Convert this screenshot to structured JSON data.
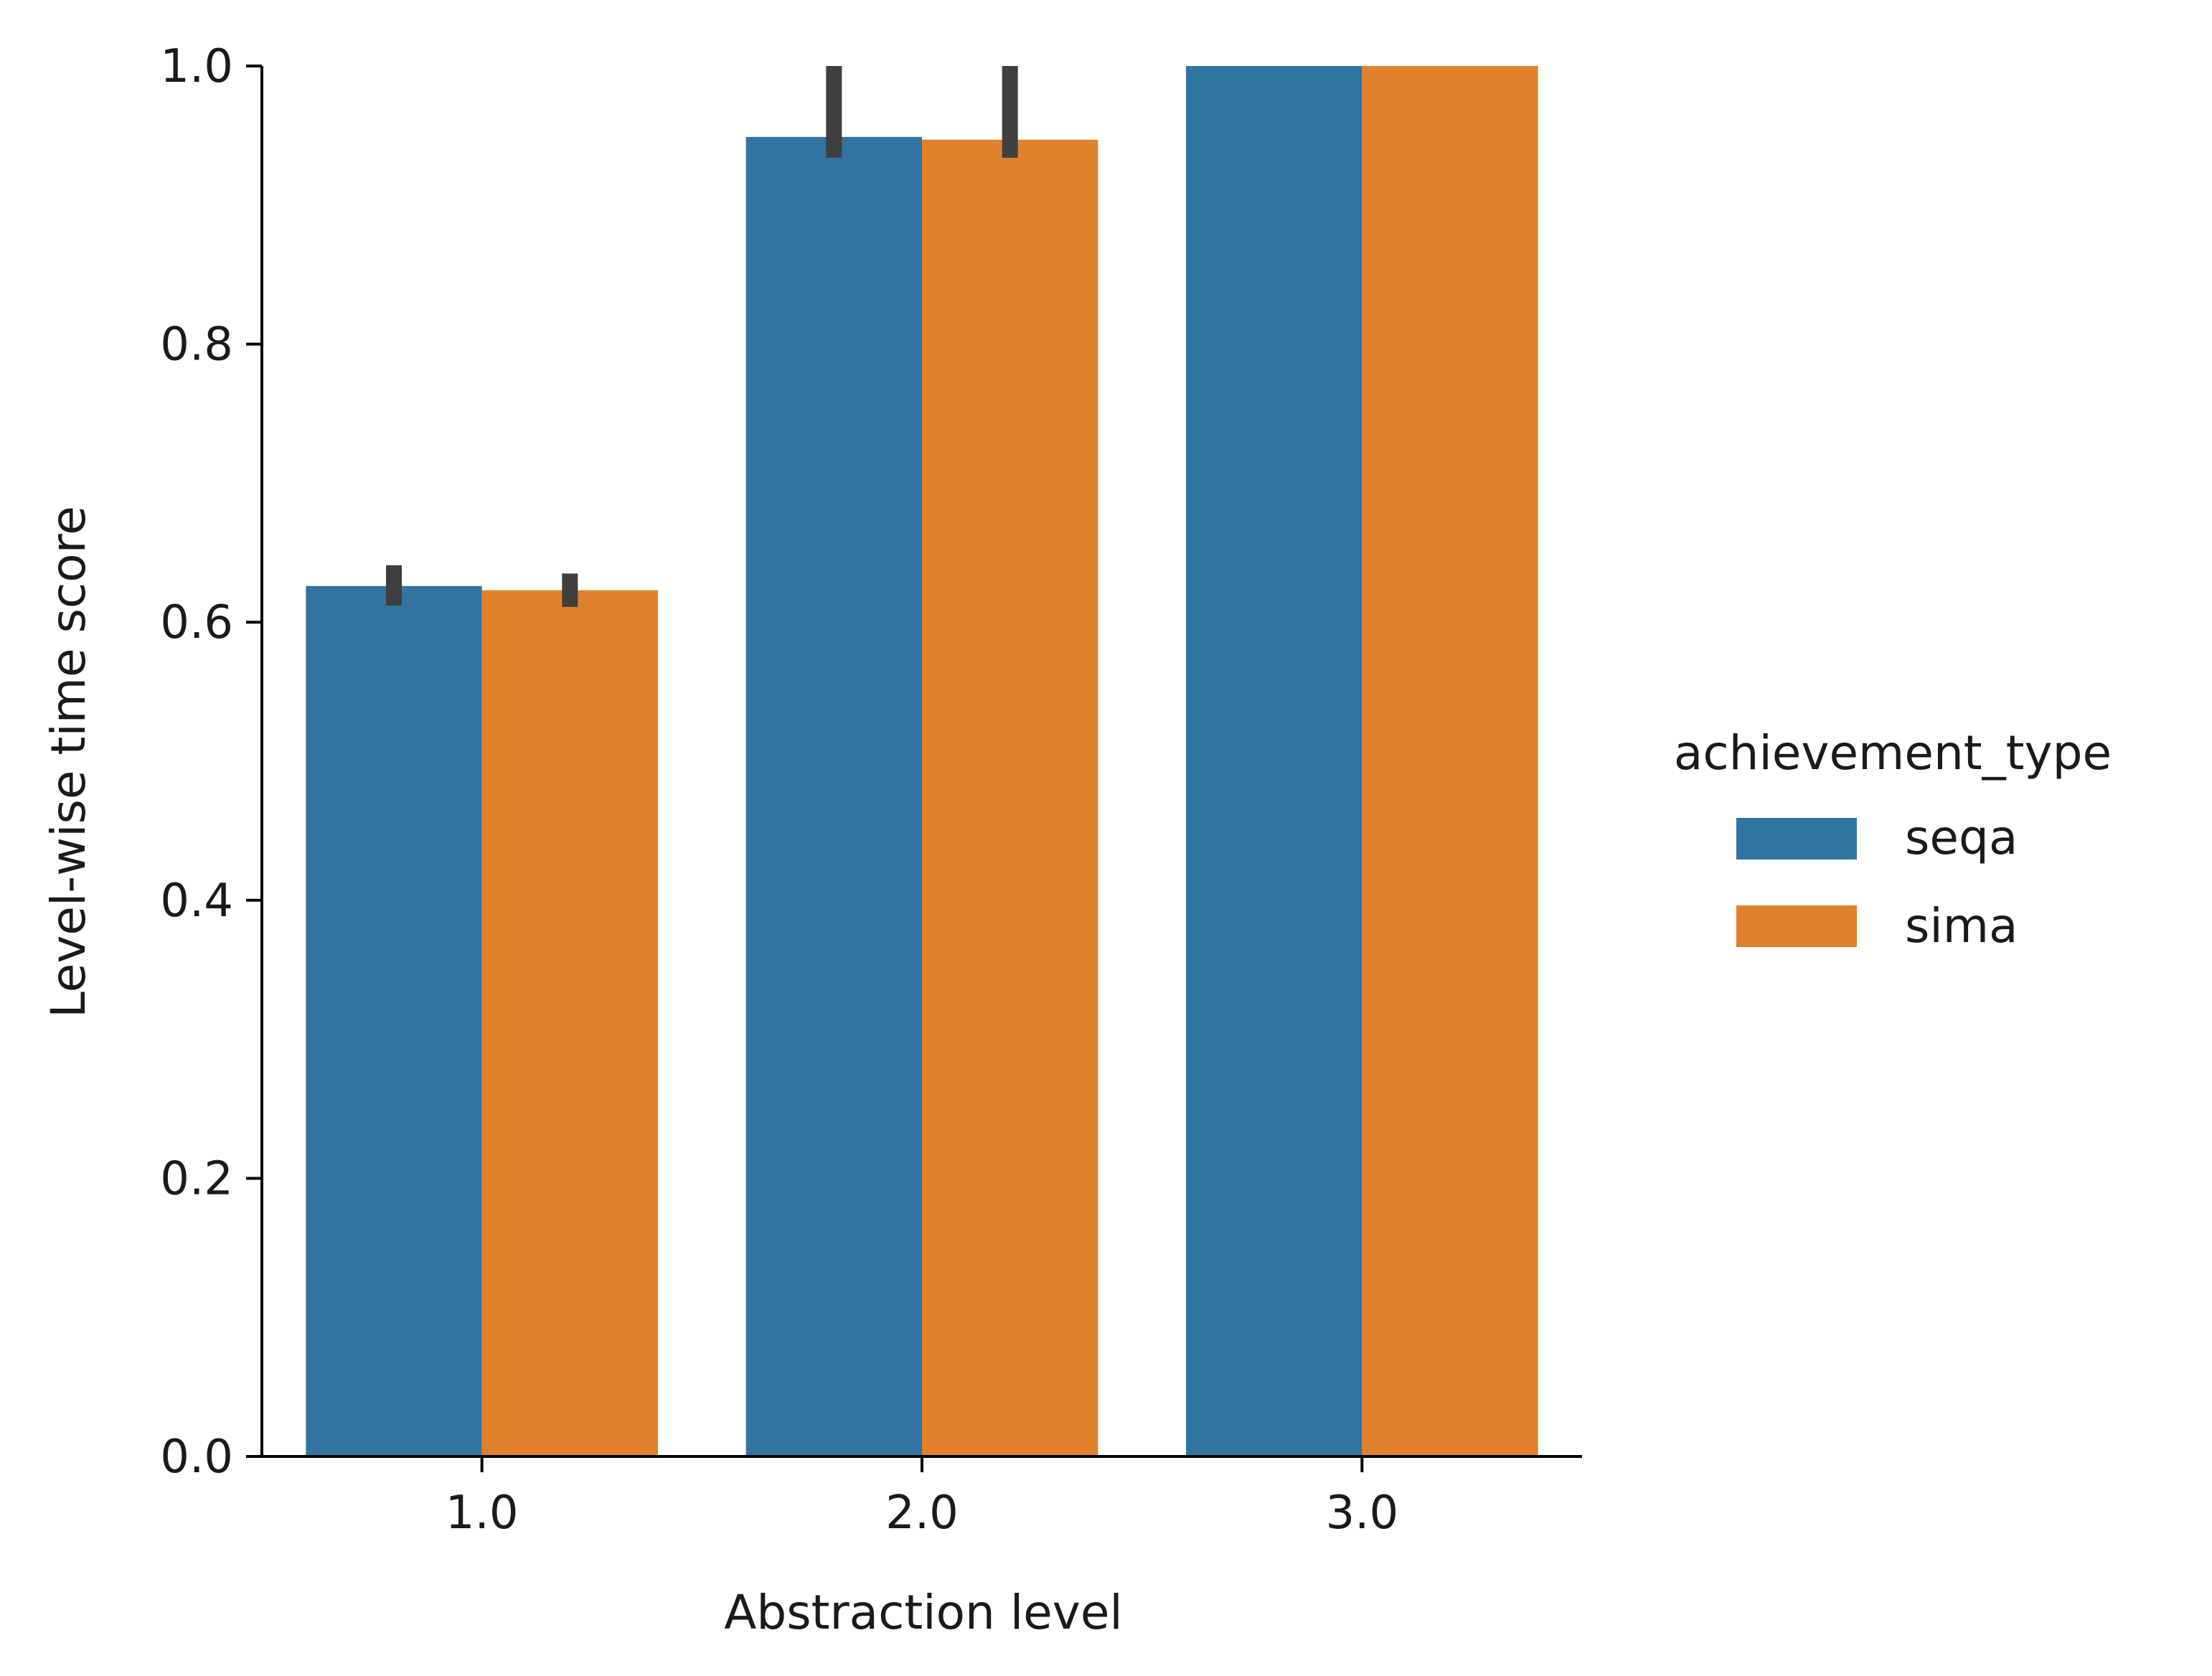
{
  "chart_data": {
    "type": "bar",
    "xlabel": "Abstraction level",
    "ylabel": "Level-wise time score",
    "categories": [
      "1.0",
      "2.0",
      "3.0"
    ],
    "ylim": [
      0.0,
      1.0
    ],
    "yticks": [
      "0.0",
      "0.2",
      "0.4",
      "0.6",
      "0.8",
      "1.0"
    ],
    "grid": false,
    "legend": {
      "title": "achievement_type",
      "placement": "right"
    },
    "series": [
      {
        "name": "seqa",
        "color": "#3274a1",
        "values": [
          0.626,
          0.949,
          1.0
        ],
        "error_low": [
          0.612,
          0.934,
          1.0
        ],
        "error_high": [
          0.641,
          1.0,
          1.0
        ]
      },
      {
        "name": "sima",
        "color": "#e1812c",
        "values": [
          0.623,
          0.947,
          1.0
        ],
        "error_low": [
          0.611,
          0.934,
          1.0
        ],
        "error_high": [
          0.635,
          1.0,
          1.0
        ]
      }
    ],
    "errorbar_color": "#3f3f3f"
  }
}
